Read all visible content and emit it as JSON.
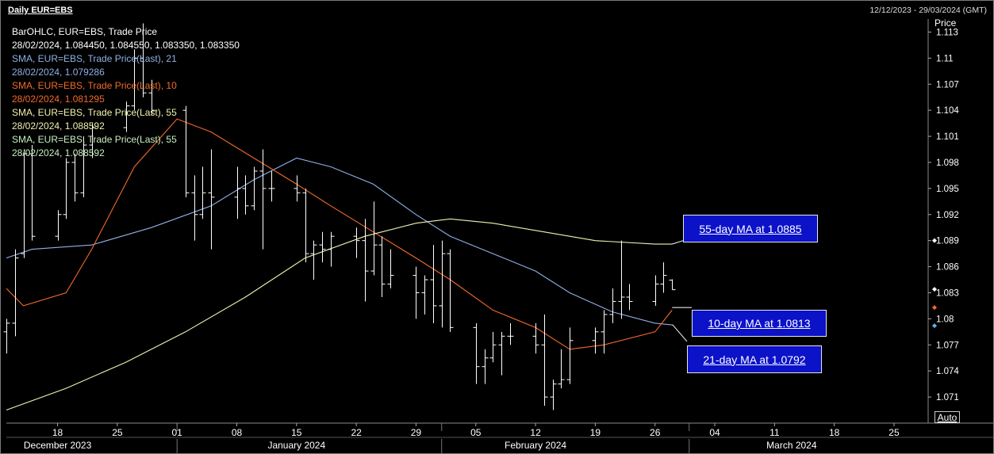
{
  "header": {
    "title": "Daily EUR=EBS",
    "date_range": "12/12/2023 - 29/03/2024 (GMT)"
  },
  "legend": [
    {
      "text": "BarOHLC, EUR=EBS, Trade Price",
      "color": "#ffffff"
    },
    {
      "text": "28/02/2024, 1.084450, 1.084550, 1.083350, 1.083350",
      "color": "#ffffff"
    },
    {
      "text": "SMA, EUR=EBS, Trade Price(Last),  21",
      "color": "#8fb0e6"
    },
    {
      "text": "28/02/2024, 1.079286",
      "color": "#8fb0e6"
    },
    {
      "text": "SMA, EUR=EBS, Trade Price(Last),  10",
      "color": "#f26a2a"
    },
    {
      "text": "28/02/2024, 1.081295",
      "color": "#f26a2a"
    },
    {
      "text": "SMA, EUR=EBS, Trade Price(Last),  55",
      "color": "#f2f2b0"
    },
    {
      "text": "28/02/2024, 1.088592",
      "color": "#f2f2b0"
    },
    {
      "text": "SMA, EUR=EBS, Trade Price(Last),  55",
      "color": "#c8f0c0"
    },
    {
      "text": "28/02/2024, 1.088592",
      "color": "#c8f0c0"
    }
  ],
  "annotations": {
    "ma55": "55-day MA at 1.0885",
    "ma10": "10-day MA at 1.0813",
    "ma21": "21-day MA at 1.0792"
  },
  "controls": {
    "auto": "Auto"
  },
  "chart_data": {
    "type": "line",
    "ylabel": "Price",
    "ylim": [
      1.068,
      1.1145
    ],
    "y_ticks": [
      "1.113",
      "1.11",
      "1.107",
      "1.104",
      "1.101",
      "1.098",
      "1.095",
      "1.092",
      "1.089",
      "1.086",
      "1.083",
      "1.08",
      "1.077",
      "1.074",
      "1.071"
    ],
    "x_day_ticks": [
      {
        "label": "18",
        "date": "2023-12-18"
      },
      {
        "label": "25",
        "date": "2023-12-25"
      },
      {
        "label": "01",
        "date": "2024-01-01"
      },
      {
        "label": "08",
        "date": "2024-01-08"
      },
      {
        "label": "15",
        "date": "2024-01-15"
      },
      {
        "label": "22",
        "date": "2024-01-22"
      },
      {
        "label": "29",
        "date": "2024-01-29"
      },
      {
        "label": "05",
        "date": "2024-02-05"
      },
      {
        "label": "12",
        "date": "2024-02-12"
      },
      {
        "label": "19",
        "date": "2024-02-19"
      },
      {
        "label": "26",
        "date": "2024-02-26"
      },
      {
        "label": "04",
        "date": "2024-03-04"
      },
      {
        "label": "11",
        "date": "2024-03-11"
      },
      {
        "label": "18",
        "date": "2024-03-18"
      },
      {
        "label": "25",
        "date": "2024-03-25"
      }
    ],
    "x_month_labels": [
      {
        "label": "December 2023",
        "date": "2023-12-18"
      },
      {
        "label": "January 2024",
        "date": "2024-01-15"
      },
      {
        "label": "February 2024",
        "date": "2024-02-12"
      },
      {
        "label": "March 2024",
        "date": "2024-03-13"
      }
    ],
    "x_range": [
      "2023-12-12",
      "2024-03-29"
    ],
    "ohlc": [
      {
        "date": "2023-12-12",
        "open": 1.0785,
        "high": 1.08,
        "low": 1.076,
        "close": 1.0795
      },
      {
        "date": "2023-12-13",
        "open": 1.0795,
        "high": 1.088,
        "low": 1.078,
        "close": 1.087
      },
      {
        "date": "2023-12-14",
        "open": 1.0875,
        "high": 1.0995,
        "low": 1.087,
        "close": 1.099
      },
      {
        "date": "2023-12-15",
        "open": 1.099,
        "high": 1.1,
        "low": 1.089,
        "close": 1.0895
      },
      {
        "date": "2023-12-18",
        "open": 1.0895,
        "high": 1.0925,
        "low": 1.089,
        "close": 1.092
      },
      {
        "date": "2023-12-19",
        "open": 1.092,
        "high": 1.0985,
        "low": 1.0915,
        "close": 1.098
      },
      {
        "date": "2023-12-20",
        "open": 1.098,
        "high": 1.099,
        "low": 1.0935,
        "close": 1.0945
      },
      {
        "date": "2023-12-21",
        "open": 1.0945,
        "high": 1.101,
        "low": 1.094,
        "close": 1.1
      },
      {
        "date": "2023-12-22",
        "open": 1.1,
        "high": 1.1025,
        "low": 1.0985,
        "close": 1.102
      },
      {
        "date": "2023-12-26",
        "open": 1.102,
        "high": 1.105,
        "low": 1.1015,
        "close": 1.1045
      },
      {
        "date": "2023-12-27",
        "open": 1.1045,
        "high": 1.111,
        "low": 1.104,
        "close": 1.11
      },
      {
        "date": "2023-12-28",
        "open": 1.11,
        "high": 1.114,
        "low": 1.1055,
        "close": 1.106
      },
      {
        "date": "2023-12-29",
        "open": 1.106,
        "high": 1.1075,
        "low": 1.1035,
        "close": 1.104
      },
      {
        "date": "2024-01-02",
        "open": 1.104,
        "high": 1.1045,
        "low": 1.094,
        "close": 1.0945
      },
      {
        "date": "2024-01-03",
        "open": 1.0945,
        "high": 1.0965,
        "low": 1.089,
        "close": 1.092
      },
      {
        "date": "2024-01-04",
        "open": 1.092,
        "high": 1.0975,
        "low": 1.0915,
        "close": 1.0945
      },
      {
        "date": "2024-01-05",
        "open": 1.0945,
        "high": 1.0995,
        "low": 1.088,
        "close": 1.094
      },
      {
        "date": "2024-01-08",
        "open": 1.094,
        "high": 1.0975,
        "low": 1.0915,
        "close": 1.095
      },
      {
        "date": "2024-01-09",
        "open": 1.095,
        "high": 1.0965,
        "low": 1.092,
        "close": 1.093
      },
      {
        "date": "2024-01-10",
        "open": 1.093,
        "high": 1.0975,
        "low": 1.0925,
        "close": 1.097
      },
      {
        "date": "2024-01-11",
        "open": 1.097,
        "high": 1.0995,
        "low": 1.088,
        "close": 1.095
      },
      {
        "date": "2024-01-12",
        "open": 1.095,
        "high": 1.097,
        "low": 1.0935,
        "close": 1.095
      },
      {
        "date": "2024-01-15",
        "open": 1.095,
        "high": 1.0965,
        "low": 1.0935,
        "close": 1.0945
      },
      {
        "date": "2024-01-16",
        "open": 1.0945,
        "high": 1.095,
        "low": 1.0865,
        "close": 1.0875
      },
      {
        "date": "2024-01-17",
        "open": 1.0875,
        "high": 1.089,
        "low": 1.0845,
        "close": 1.0885
      },
      {
        "date": "2024-01-18",
        "open": 1.0885,
        "high": 1.09,
        "low": 1.0865,
        "close": 1.088
      },
      {
        "date": "2024-01-19",
        "open": 1.088,
        "high": 1.09,
        "low": 1.086,
        "close": 1.0895
      },
      {
        "date": "2024-01-22",
        "open": 1.0895,
        "high": 1.0905,
        "low": 1.087,
        "close": 1.089
      },
      {
        "date": "2024-01-23",
        "open": 1.089,
        "high": 1.0915,
        "low": 1.082,
        "close": 1.0855
      },
      {
        "date": "2024-01-24",
        "open": 1.0855,
        "high": 1.0935,
        "low": 1.085,
        "close": 1.0885
      },
      {
        "date": "2024-01-25",
        "open": 1.0885,
        "high": 1.0895,
        "low": 1.0825,
        "close": 1.084
      },
      {
        "date": "2024-01-26",
        "open": 1.084,
        "high": 1.088,
        "low": 1.0835,
        "close": 1.085
      },
      {
        "date": "2024-01-29",
        "open": 1.085,
        "high": 1.086,
        "low": 1.08,
        "close": 1.083
      },
      {
        "date": "2024-01-30",
        "open": 1.083,
        "high": 1.085,
        "low": 1.0805,
        "close": 1.0845
      },
      {
        "date": "2024-01-31",
        "open": 1.0845,
        "high": 1.0885,
        "low": 1.0795,
        "close": 1.0815
      },
      {
        "date": "2024-02-01",
        "open": 1.0815,
        "high": 1.089,
        "low": 1.079,
        "close": 1.0875
      },
      {
        "date": "2024-02-02",
        "open": 1.0875,
        "high": 1.088,
        "low": 1.0785,
        "close": 1.079
      },
      {
        "date": "2024-02-05",
        "open": 1.079,
        "high": 1.0795,
        "low": 1.0725,
        "close": 1.0745
      },
      {
        "date": "2024-02-06",
        "open": 1.0745,
        "high": 1.0765,
        "low": 1.0725,
        "close": 1.0755
      },
      {
        "date": "2024-02-07",
        "open": 1.0755,
        "high": 1.0785,
        "low": 1.075,
        "close": 1.077
      },
      {
        "date": "2024-02-08",
        "open": 1.077,
        "high": 1.0785,
        "low": 1.0735,
        "close": 1.078
      },
      {
        "date": "2024-02-09",
        "open": 1.078,
        "high": 1.0795,
        "low": 1.077,
        "close": 1.078
      },
      {
        "date": "2024-02-12",
        "open": 1.078,
        "high": 1.0795,
        "low": 1.076,
        "close": 1.077
      },
      {
        "date": "2024-02-13",
        "open": 1.077,
        "high": 1.0805,
        "low": 1.07,
        "close": 1.071
      },
      {
        "date": "2024-02-14",
        "open": 1.071,
        "high": 1.073,
        "low": 1.0695,
        "close": 1.0725
      },
      {
        "date": "2024-02-15",
        "open": 1.0725,
        "high": 1.0765,
        "low": 1.072,
        "close": 1.073
      },
      {
        "date": "2024-02-16",
        "open": 1.073,
        "high": 1.079,
        "low": 1.0725,
        "close": 1.0775
      },
      {
        "date": "2024-02-19",
        "open": 1.0775,
        "high": 1.079,
        "low": 1.076,
        "close": 1.0785
      },
      {
        "date": "2024-02-20",
        "open": 1.0785,
        "high": 1.081,
        "low": 1.076,
        "close": 1.0805
      },
      {
        "date": "2024-02-21",
        "open": 1.0805,
        "high": 1.0835,
        "low": 1.0795,
        "close": 1.082
      },
      {
        "date": "2024-02-22",
        "open": 1.082,
        "high": 1.089,
        "low": 1.08,
        "close": 1.0825
      },
      {
        "date": "2024-02-23",
        "open": 1.0825,
        "high": 1.084,
        "low": 1.081,
        "close": 1.082
      },
      {
        "date": "2024-02-26",
        "open": 1.082,
        "high": 1.085,
        "low": 1.0815,
        "close": 1.084
      },
      {
        "date": "2024-02-27",
        "open": 1.084,
        "high": 1.0865,
        "low": 1.083,
        "close": 1.085
      },
      {
        "date": "2024-02-28",
        "open": 1.08445,
        "high": 1.08455,
        "low": 1.08335,
        "close": 1.08335
      }
    ],
    "series": [
      {
        "name": "SMA, EUR=EBS, Trade Price(Last),  21",
        "color": "#8fb0e6",
        "points": [
          [
            "2023-12-12",
            1.087
          ],
          [
            "2023-12-15",
            1.088
          ],
          [
            "2023-12-22",
            1.0885
          ],
          [
            "2023-12-29",
            1.0905
          ],
          [
            "2024-01-05",
            1.093
          ],
          [
            "2024-01-10",
            1.096
          ],
          [
            "2024-01-15",
            1.0985
          ],
          [
            "2024-01-19",
            1.0975
          ],
          [
            "2024-01-24",
            1.0955
          ],
          [
            "2024-01-29",
            1.092
          ],
          [
            "2024-02-02",
            1.0895
          ],
          [
            "2024-02-07",
            1.0875
          ],
          [
            "2024-02-12",
            1.0855
          ],
          [
            "2024-02-16",
            1.083
          ],
          [
            "2024-02-21",
            1.0808
          ],
          [
            "2024-02-26",
            1.0795
          ],
          [
            "2024-02-28",
            1.0793
          ]
        ]
      },
      {
        "name": "SMA, EUR=EBS, Trade Price(Last),  10",
        "color": "#f26a2a",
        "points": [
          [
            "2023-12-12",
            1.0835
          ],
          [
            "2023-12-14",
            1.0815
          ],
          [
            "2023-12-19",
            1.083
          ],
          [
            "2023-12-22",
            1.088
          ],
          [
            "2023-12-27",
            1.0975
          ],
          [
            "2024-01-01",
            1.103
          ],
          [
            "2024-01-05",
            1.1015
          ],
          [
            "2024-01-10",
            1.0985
          ],
          [
            "2024-01-15",
            1.0955
          ],
          [
            "2024-01-19",
            1.093
          ],
          [
            "2024-01-24",
            1.09
          ],
          [
            "2024-01-29",
            1.087
          ],
          [
            "2024-02-02",
            1.0845
          ],
          [
            "2024-02-07",
            1.081
          ],
          [
            "2024-02-12",
            1.079
          ],
          [
            "2024-02-16",
            1.0765
          ],
          [
            "2024-02-20",
            1.077
          ],
          [
            "2024-02-26",
            1.0785
          ],
          [
            "2024-02-28",
            1.081
          ]
        ]
      },
      {
        "name": "SMA, EUR=EBS, Trade Price(Last),  55",
        "color": "#f2f2b0",
        "points": [
          [
            "2023-12-12",
            1.0695
          ],
          [
            "2023-12-19",
            1.072
          ],
          [
            "2023-12-26",
            1.075
          ],
          [
            "2024-01-02",
            1.0785
          ],
          [
            "2024-01-09",
            1.0825
          ],
          [
            "2024-01-16",
            1.087
          ],
          [
            "2024-01-23",
            1.0895
          ],
          [
            "2024-01-29",
            1.091
          ],
          [
            "2024-02-02",
            1.0915
          ],
          [
            "2024-02-07",
            1.091
          ],
          [
            "2024-02-13",
            1.09
          ],
          [
            "2024-02-19",
            1.089
          ],
          [
            "2024-02-26",
            1.0886
          ],
          [
            "2024-02-28",
            1.0886
          ]
        ]
      },
      {
        "name": "SMA, EUR=EBS, Trade Price(Last),  55",
        "color": "#c8f0c0",
        "points": [
          [
            "2024-02-28",
            1.0886
          ]
        ]
      }
    ],
    "last_value_markers": [
      {
        "value": 1.089,
        "color": "#ffffff"
      },
      {
        "value": 1.0834,
        "color": "#ffffff"
      },
      {
        "value": 1.0813,
        "color": "#f26a2a"
      },
      {
        "value": 1.0792,
        "color": "#5ab0f0"
      }
    ]
  }
}
